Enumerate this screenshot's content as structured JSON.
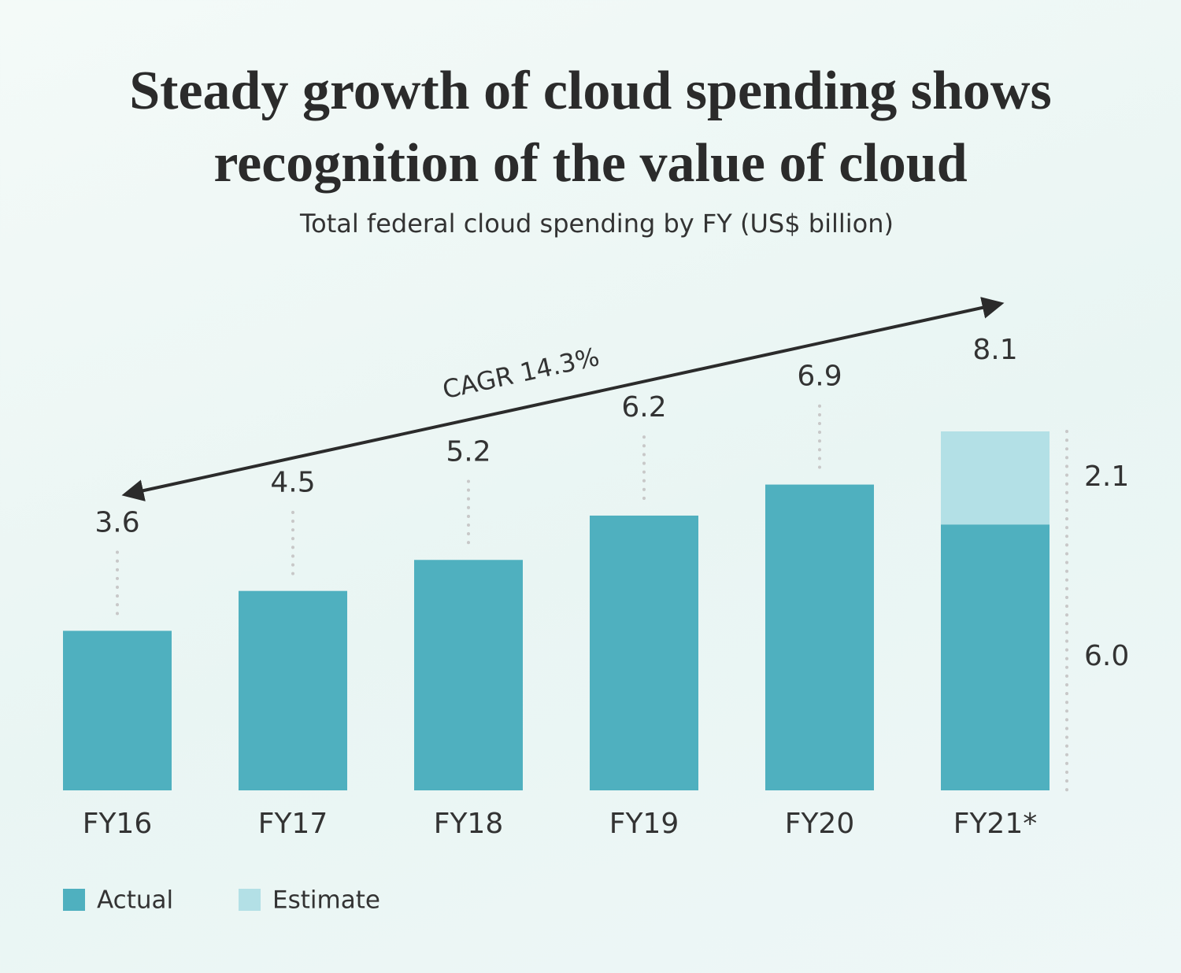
{
  "chart_data": {
    "type": "stacked-bar",
    "title": "Steady growth of cloud spending shows recognition of the value of cloud",
    "subtitle": "Total federal cloud spending by FY (US$ billion)",
    "annotation": "CAGR 14.3%",
    "categories": [
      "FY16",
      "FY17",
      "FY18",
      "FY19",
      "FY20",
      "FY21*"
    ],
    "series": [
      {
        "name": "Actual",
        "color": "#4fb0bf",
        "values": [
          3.6,
          4.5,
          5.2,
          6.2,
          6.9,
          6.0
        ],
        "value_labels": [
          null,
          null,
          null,
          null,
          null,
          "6.0"
        ]
      },
      {
        "name": "Estimate",
        "color": "#b3e0e6",
        "values": [
          null,
          null,
          null,
          null,
          null,
          2.1
        ]
      }
    ],
    "totals": [
      3.6,
      4.5,
      5.2,
      6.2,
      6.9,
      8.1
    ]
  }
}
